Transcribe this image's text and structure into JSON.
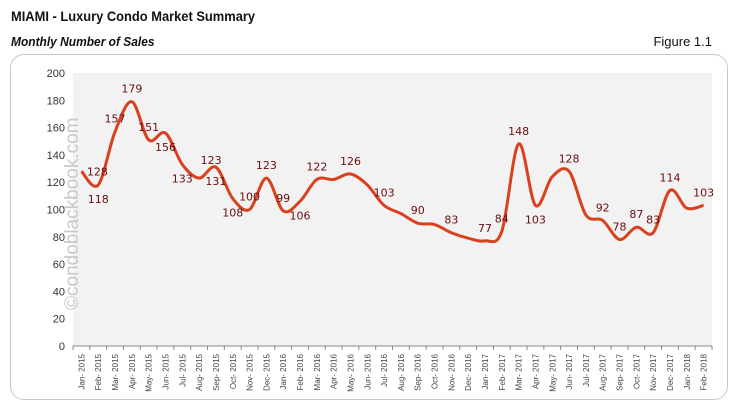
{
  "header": {
    "title": "MIAMI - Luxury Condo Market Summary",
    "subtitle": "Monthly Number of Sales",
    "figure": "Figure 1.1"
  },
  "watermark": "©condoblackbook.com",
  "colors": {
    "line": "#d9411e",
    "label": "#6b0d0d",
    "plot_bg": "#f2f2f2"
  },
  "chart_data": {
    "type": "line",
    "title": "Monthly Number of Sales",
    "xlabel": "",
    "ylabel": "",
    "ylim": [
      0,
      200
    ],
    "yticks": [
      0,
      20,
      40,
      60,
      80,
      100,
      120,
      140,
      160,
      180,
      200
    ],
    "grid": false,
    "smooth": true,
    "categories": [
      "Jan- 2015",
      "Feb- 2015",
      "Mar- 2015",
      "Apr- 2015",
      "May- 2015",
      "Jun- 2015",
      "Jul- 2015",
      "Aug- 2015",
      "Sep- 2015",
      "Oct- 2015",
      "Nov- 2015",
      "Dec- 2015",
      "Jan- 2016",
      "Feb- 2016",
      "Mar- 2016",
      "Apr- 2016",
      "May- 2016",
      "Jun- 2016",
      "Jul- 2016",
      "Aug- 2016",
      "Sep- 2016",
      "Oct- 2016",
      "Nov- 2016",
      "Dec- 2016",
      "Jan- 2017",
      "Feb- 2017",
      "Mar- 2017",
      "Apr- 2017",
      "May- 2017",
      "Jun- 2017",
      "Jul- 2017",
      "Aug- 2017",
      "Sep- 2017",
      "Oct- 2017",
      "Nov- 2017",
      "Dec- 2017",
      "Jan- 2018",
      "Feb- 2018"
    ],
    "values": [
      128,
      118,
      157,
      179,
      151,
      156,
      133,
      123,
      131,
      108,
      100,
      123,
      99,
      106,
      122,
      122,
      126,
      118,
      103,
      97,
      90,
      89,
      83,
      79,
      77,
      84,
      148,
      103,
      124,
      128,
      96,
      92,
      78,
      87,
      83,
      114,
      101,
      103
    ],
    "data_labels": [
      "128",
      "118",
      "157",
      "179",
      "151",
      "156",
      "133",
      "123",
      "131",
      "108",
      "100",
      "123",
      "99",
      "106",
      "122",
      null,
      "126",
      null,
      "103",
      null,
      "90",
      null,
      "83",
      null,
      "77",
      "84",
      "148",
      "103",
      null,
      "128",
      null,
      "92",
      "78",
      "87",
      "83",
      "114",
      null,
      "103"
    ]
  }
}
